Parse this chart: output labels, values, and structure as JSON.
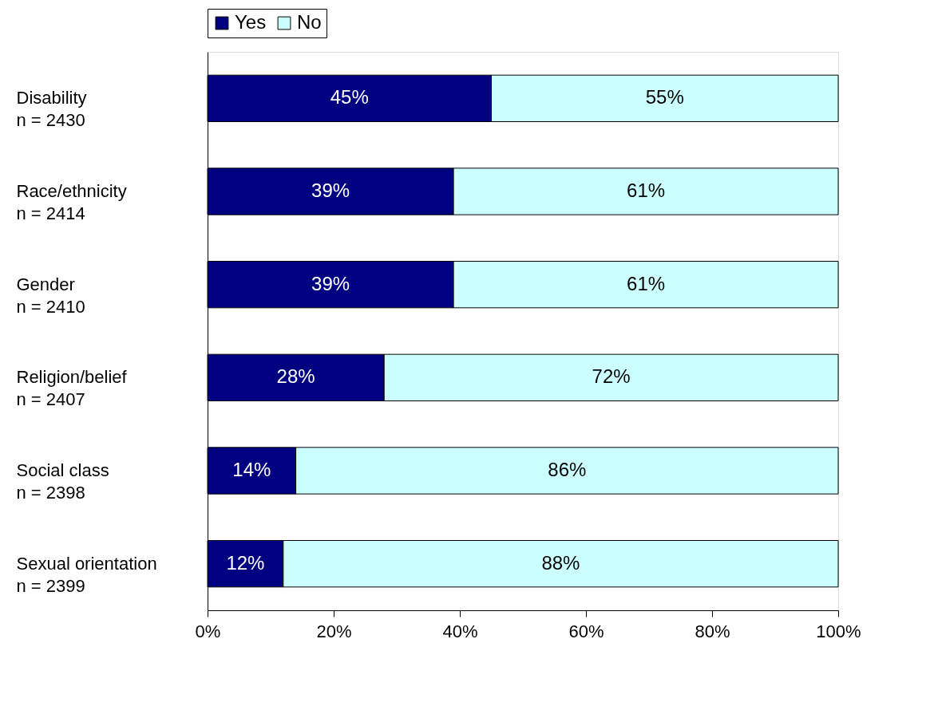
{
  "chart_data": {
    "type": "bar",
    "orientation": "horizontal",
    "stacked": true,
    "categories": [
      "Disability\nn =  2430",
      "Race/ethnicity\nn = 2414",
      "Gender\nn = 2410",
      "Religion/belief\nn = 2407",
      "Social class\nn = 2398",
      "Sexual orientation\nn = 2399"
    ],
    "series": [
      {
        "name": "Yes",
        "color": "#000080",
        "values": [
          45,
          39,
          39,
          28,
          14,
          12
        ],
        "value_labels": [
          "45%",
          "39%",
          "39%",
          "28%",
          "14%",
          "12%"
        ]
      },
      {
        "name": "No",
        "color": "#ccffff",
        "values": [
          55,
          61,
          61,
          72,
          86,
          88
        ],
        "value_labels": [
          "55%",
          "61%",
          "61%",
          "72%",
          "86%",
          "88%"
        ]
      }
    ],
    "xlim": [
      0,
      100
    ],
    "xticks": [
      {
        "value": 0,
        "label": "0%"
      },
      {
        "value": 20,
        "label": "20%"
      },
      {
        "value": 40,
        "label": "40%"
      },
      {
        "value": 60,
        "label": "60%"
      },
      {
        "value": 80,
        "label": "80%"
      },
      {
        "value": 100,
        "label": "100%"
      }
    ],
    "legend": "top",
    "grid": false
  }
}
